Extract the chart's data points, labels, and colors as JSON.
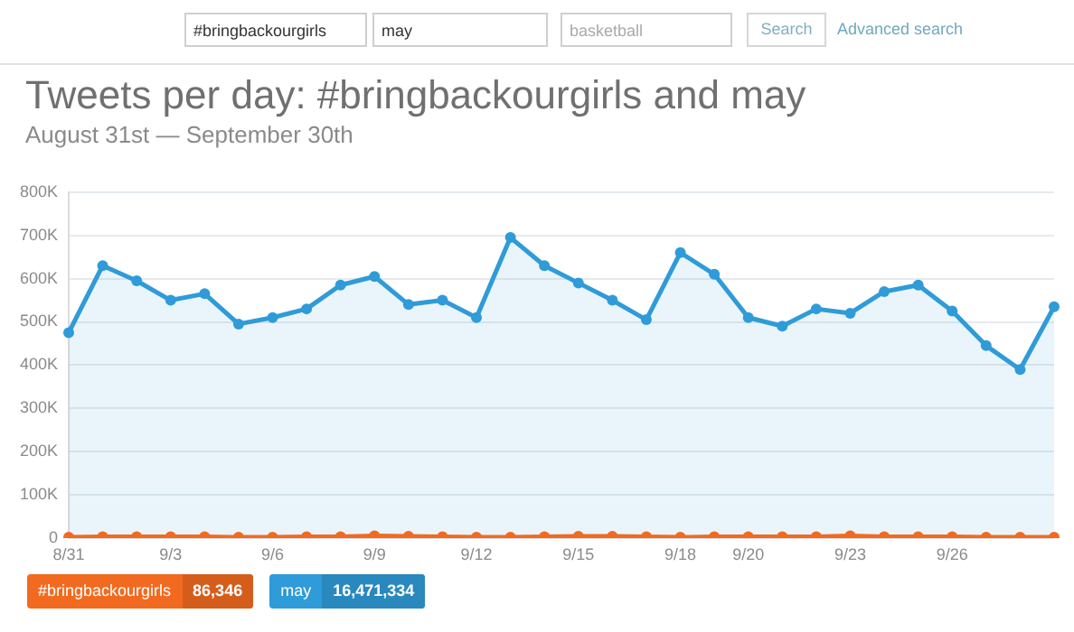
{
  "chart_data": {
    "type": "line",
    "title": "Tweets per day: #bringbackourgirls and may",
    "subtitle": "August 31st — September 30th",
    "categories": [
      "8/31",
      null,
      null,
      "9/3",
      null,
      null,
      "9/6",
      null,
      null,
      "9/9",
      null,
      null,
      "9/12",
      null,
      null,
      "9/15",
      null,
      null,
      "9/18",
      null,
      "9/20",
      null,
      null,
      "9/23",
      null,
      null,
      "9/26",
      null,
      null,
      null
    ],
    "series": [
      {
        "name": "#bringbackourgirls",
        "type": "line",
        "color": "#f26a1f",
        "values": [
          2000,
          3000,
          3000,
          3000,
          3000,
          2000,
          2000,
          3000,
          3000,
          5000,
          4000,
          3000,
          2000,
          2000,
          3000,
          4000,
          4000,
          3000,
          2000,
          3000,
          3000,
          3000,
          3000,
          5000,
          3000,
          3000,
          3000,
          2000,
          2000,
          2000
        ]
      },
      {
        "name": "may",
        "type": "area",
        "color": "#2f9bd8",
        "values": [
          475000,
          630000,
          595000,
          550000,
          565000,
          495000,
          510000,
          530000,
          585000,
          605000,
          540000,
          550000,
          510000,
          695000,
          630000,
          590000,
          550000,
          505000,
          660000,
          610000,
          510000,
          490000,
          530000,
          520000,
          570000,
          585000,
          525000,
          445000,
          390000,
          535000
        ]
      }
    ],
    "ylim": [
      0,
      800000
    ],
    "yticks": [
      0,
      {
        "value": 100000,
        "label": "100K"
      },
      {
        "value": 200000,
        "label": "200K"
      },
      {
        "value": 300000,
        "label": "300K"
      },
      {
        "value": 400000,
        "label": "400K"
      },
      {
        "value": 500000,
        "label": "500K"
      },
      {
        "value": 600000,
        "label": "600K"
      },
      {
        "value": 700000,
        "label": "700K"
      },
      {
        "value": 800000,
        "label": "800K"
      }
    ],
    "grid": "y",
    "legend": "bottom left",
    "marker": "circle",
    "line_style": "solid",
    "annotations": [
      "#bringbackourgirls",
      "may",
      "basketball",
      "Search",
      "Advanced search",
      "86,346",
      "16,471,334"
    ]
  }
}
